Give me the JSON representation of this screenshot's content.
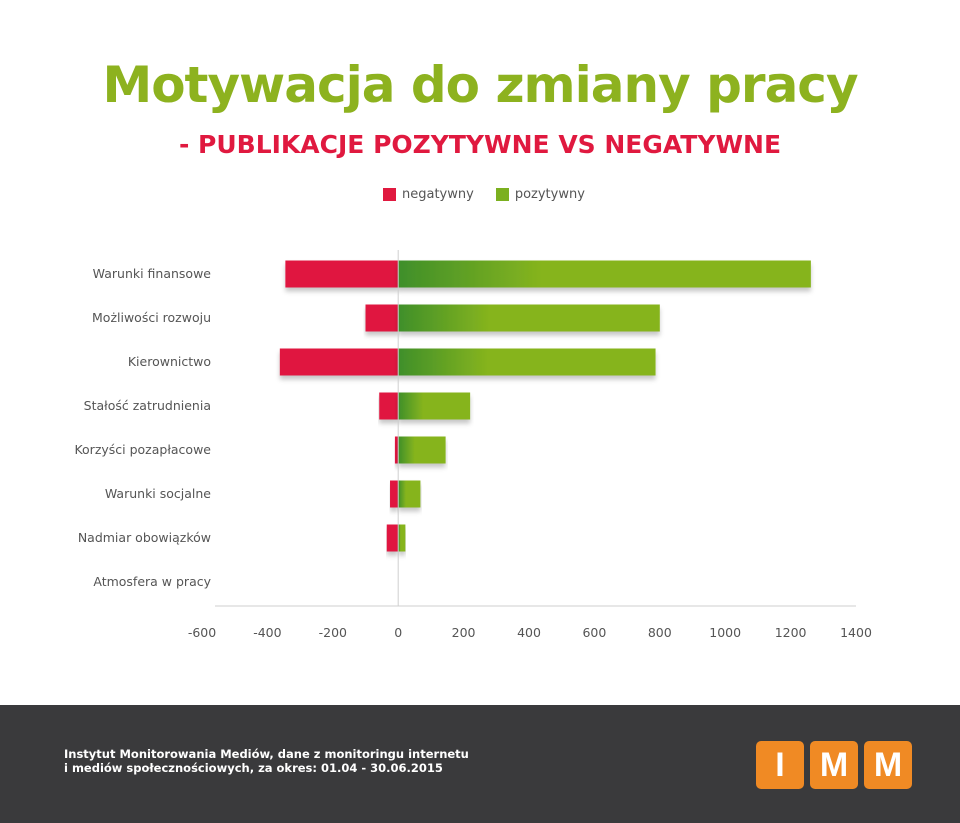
{
  "title": "Motywacja do zmiany pracy",
  "subtitle": "- PUBLIKACJE POZYTYWNE VS NEGATYWNE",
  "colors": {
    "title": "#8db21f",
    "subtitle": "#e0193f",
    "negative": "#e0193f",
    "positive_start": "#3f8f2a",
    "positive_end": "#86b41e",
    "footer_bg": "#3a3a3c",
    "logo": "#f08a24"
  },
  "legend": [
    {
      "label": "negatywny",
      "color": "#e0193f"
    },
    {
      "label": "pozytywny",
      "color": "#7bb01f"
    }
  ],
  "chart_data": {
    "type": "bar",
    "orientation": "horizontal",
    "stacked": "diverging",
    "categories": [
      "Warunki finansowe",
      "Możliwości rozwoju",
      "Kierownictwo",
      "Stałość zatrudnienia",
      "Korzyści pozapłacowe",
      "Warunki socjalne",
      "Nadmiar obowiązków",
      "Atmosfera w pracy"
    ],
    "series": [
      {
        "name": "negatywny",
        "values": [
          -345,
          -100,
          -362,
          -58,
          -10,
          -25,
          -35,
          0
        ]
      },
      {
        "name": "pozytywny",
        "values": [
          1262,
          800,
          787,
          220,
          145,
          68,
          22,
          0
        ]
      }
    ],
    "xlim": [
      -600,
      1400
    ],
    "xticks": [
      "-600",
      "-400",
      "-200",
      "0",
      "200",
      "400",
      "600",
      "800",
      "1000",
      "1200",
      "1400"
    ],
    "legend_position": "top-center",
    "grid": false
  },
  "footer": {
    "line1": "Instytut Monitorowania Mediów, dane z monitoringu internetu",
    "line2": "i mediów społecznościowych, za okres: 01.04 - 30.06.2015"
  },
  "logo": {
    "letters": [
      "I",
      "M",
      "M"
    ],
    "color": "#f08a24"
  }
}
